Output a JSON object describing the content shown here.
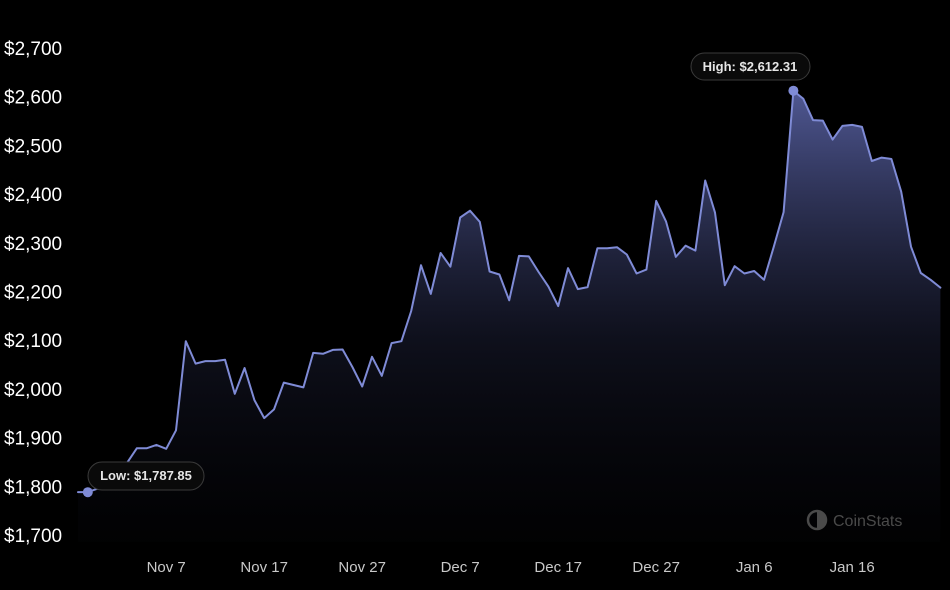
{
  "chart_data": {
    "type": "area",
    "ylim": [
      1700,
      2700
    ],
    "y_ticks": [
      "$2,700",
      "$2,600",
      "$2,500",
      "$2,400",
      "$2,300",
      "$2,200",
      "$2,100",
      "$2,000",
      "$1,900",
      "$1,800",
      "$1,700"
    ],
    "x_ticks": [
      "Nov 7",
      "Nov 17",
      "Nov 27",
      "Dec 7",
      "Dec 17",
      "Dec 27",
      "Jan 6",
      "Jan 16"
    ],
    "x_start": "2023-10-29",
    "step_days": 1,
    "values": [
      1788,
      1788,
      1795,
      1812,
      1840,
      1848,
      1878,
      1878,
      1885,
      1877,
      1915,
      2098,
      2052,
      2057,
      2057,
      2060,
      1990,
      2043,
      1977,
      1940,
      1958,
      2013,
      2008,
      2003,
      2074,
      2072,
      2080,
      2081,
      2045,
      2005,
      2066,
      2027,
      2094,
      2098,
      2160,
      2254,
      2195,
      2279,
      2251,
      2352,
      2366,
      2343,
      2241,
      2235,
      2182,
      2273,
      2272,
      2240,
      2210,
      2170,
      2248,
      2205,
      2209,
      2289,
      2289,
      2291,
      2276,
      2237,
      2245,
      2386,
      2344,
      2271,
      2294,
      2284,
      2428,
      2362,
      2213,
      2252,
      2237,
      2242,
      2224,
      2292,
      2363,
      2612,
      2596,
      2552,
      2551,
      2512,
      2540,
      2542,
      2538,
      2468,
      2475,
      2472,
      2405,
      2292,
      2238,
      2224,
      2208
    ],
    "high": {
      "label": "High: $2,612.31",
      "value": 2612.31
    },
    "low": {
      "label": "Low: $1,787.85",
      "value": 1787.85
    },
    "line_color": "#7f8bd6",
    "fill_color": "#6a75c4"
  },
  "watermark": {
    "text": "CoinStats",
    "icon": "coinstats-logo-icon"
  }
}
